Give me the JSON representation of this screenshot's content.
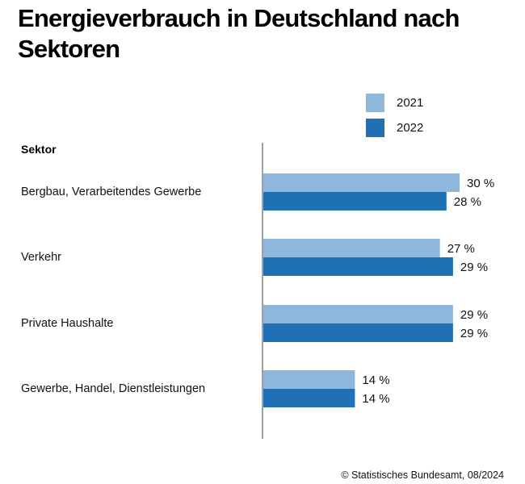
{
  "title": "Energieverbrauch in Deutschland nach Sektoren",
  "source": "© Statistisches Bundesamt, 08/2024",
  "chart_data": {
    "type": "bar",
    "orientation": "horizontal",
    "title": "Energieverbrauch in Deutschland nach Sektoren",
    "category_header": "Sektor",
    "categories": [
      "Bergbau, Verarbeitendes Gewerbe",
      "Verkehr",
      "Private Haushalte",
      "Gewerbe, Handel, Dienstleistungen"
    ],
    "series": [
      {
        "name": "2021",
        "color": "#8fb7db",
        "values": [
          30,
          27,
          29,
          14
        ],
        "labels": [
          "30 %",
          "27 %",
          "29 %",
          "14 %"
        ]
      },
      {
        "name": "2022",
        "color": "#2070b6",
        "values": [
          28,
          29,
          29,
          14
        ],
        "labels": [
          "28 %",
          "29 %",
          "29 %",
          "14 %"
        ]
      }
    ],
    "xlabel": "",
    "ylabel": "",
    "unit": "%",
    "xlim": [
      0,
      30
    ],
    "grid": false,
    "legend_position": "top-right",
    "axis_color": "#a0a0a0"
  }
}
